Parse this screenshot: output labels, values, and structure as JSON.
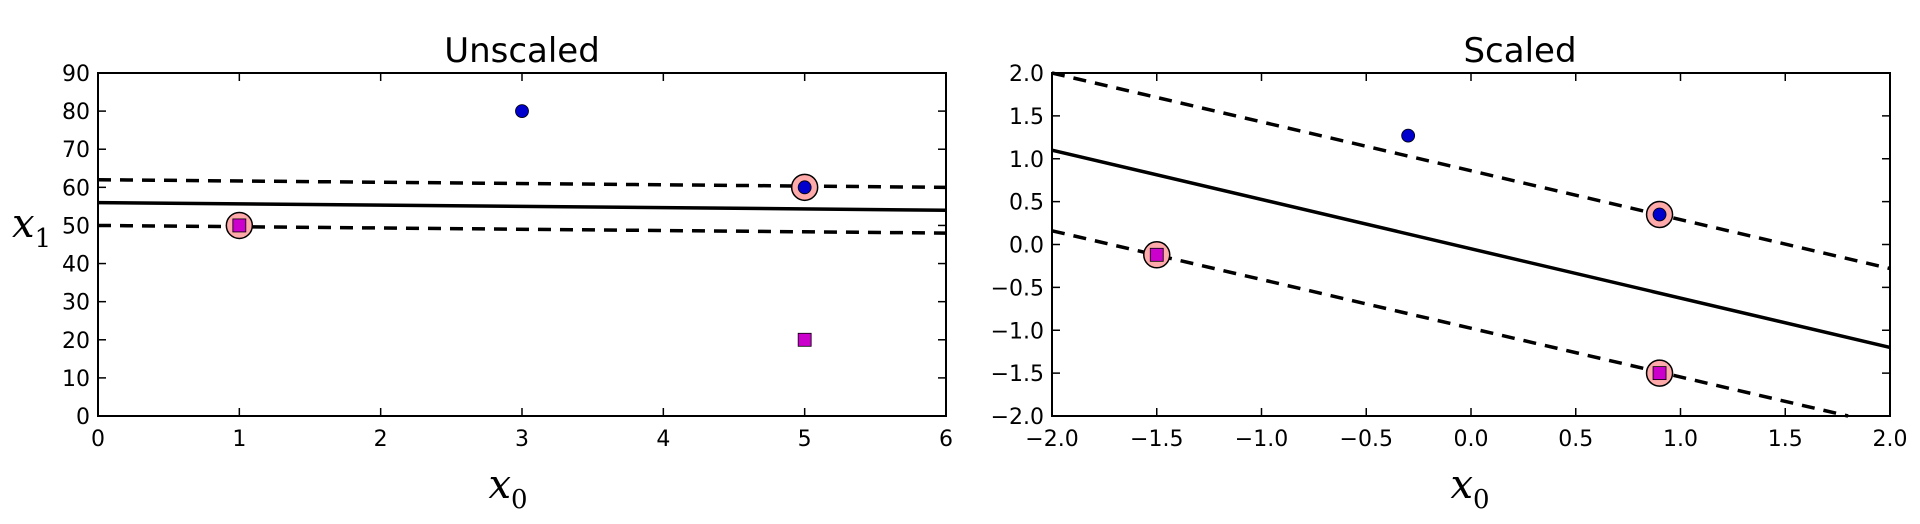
{
  "chart_data": [
    {
      "type": "scatter",
      "title": "Unscaled",
      "xlabel_base": "x",
      "xlabel_sub": "0",
      "ylabel_base": "x",
      "ylabel_sub": "1",
      "xlim": [
        0,
        6
      ],
      "ylim": [
        0,
        90
      ],
      "xticks": [
        0,
        1,
        2,
        3,
        4,
        5,
        6
      ],
      "xtick_labels": [
        "0",
        "1",
        "2",
        "3",
        "4",
        "5",
        "6"
      ],
      "yticks": [
        0,
        10,
        20,
        30,
        40,
        50,
        60,
        70,
        80,
        90
      ],
      "ytick_labels": [
        "0",
        "10",
        "20",
        "30",
        "40",
        "50",
        "60",
        "70",
        "80",
        "90"
      ],
      "grid": false,
      "series": [
        {
          "marker": "circle",
          "color": "#0000cc",
          "points": [
            [
              3,
              80
            ],
            [
              5,
              60
            ]
          ]
        },
        {
          "marker": "square",
          "color": "#cc00cc",
          "points": [
            [
              1,
              50
            ],
            [
              5,
              20
            ]
          ]
        }
      ],
      "support_vectors": [
        [
          1,
          50
        ],
        [
          5,
          60
        ]
      ],
      "lines": [
        {
          "style": "solid",
          "points": [
            [
              0,
              56
            ],
            [
              6,
              54
            ]
          ]
        },
        {
          "style": "dashed",
          "points": [
            [
              0,
              62
            ],
            [
              6,
              60
            ]
          ]
        },
        {
          "style": "dashed",
          "points": [
            [
              0,
              50
            ],
            [
              6,
              48
            ]
          ]
        }
      ]
    },
    {
      "type": "scatter",
      "title": "Scaled",
      "xlabel_base": "x",
      "xlabel_sub": "0",
      "ylabel_base": "",
      "ylabel_sub": "",
      "xlim": [
        -2.0,
        2.0
      ],
      "ylim": [
        -2.0,
        2.0
      ],
      "xticks": [
        -2.0,
        -1.5,
        -1.0,
        -0.5,
        0.0,
        0.5,
        1.0,
        1.5,
        2.0
      ],
      "xtick_labels": [
        "−2.0",
        "−1.5",
        "−1.0",
        "−0.5",
        "0.0",
        "0.5",
        "1.0",
        "1.5",
        "2.0"
      ],
      "yticks": [
        -2.0,
        -1.5,
        -1.0,
        -0.5,
        0.0,
        0.5,
        1.0,
        1.5,
        2.0
      ],
      "ytick_labels": [
        "−2.0",
        "−1.5",
        "−1.0",
        "−0.5",
        "0.0",
        "0.5",
        "1.0",
        "1.5",
        "2.0"
      ],
      "grid": false,
      "series": [
        {
          "marker": "circle",
          "color": "#0000cc",
          "points": [
            [
              -0.3,
              1.27
            ],
            [
              0.9,
              0.35
            ]
          ]
        },
        {
          "marker": "square",
          "color": "#cc00cc",
          "points": [
            [
              -1.5,
              -0.12
            ],
            [
              0.9,
              -1.5
            ]
          ]
        }
      ],
      "support_vectors": [
        [
          -1.5,
          -0.12
        ],
        [
          0.9,
          0.35
        ],
        [
          0.9,
          -1.5
        ]
      ],
      "lines": [
        {
          "style": "solid",
          "points": [
            [
              -2.0,
              1.1
            ],
            [
              2.0,
              -1.2
            ]
          ]
        },
        {
          "style": "dashed",
          "points": [
            [
              -2.0,
              2.0
            ],
            [
              2.0,
              -0.28
            ]
          ]
        },
        {
          "style": "dashed",
          "points": [
            [
              -2.0,
              0.16
            ],
            [
              1.8,
              -2.0
            ]
          ]
        }
      ]
    }
  ]
}
